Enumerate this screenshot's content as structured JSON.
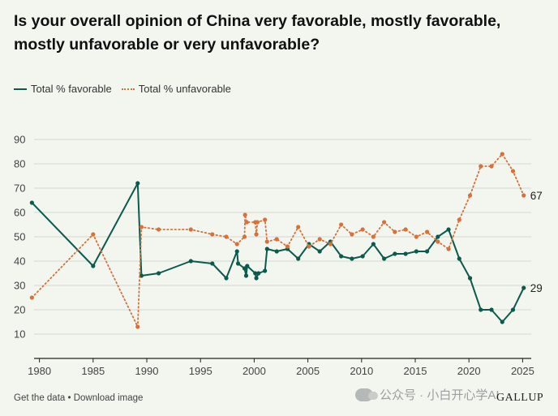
{
  "title": "Is your overall opinion of China very favorable, mostly favorable, mostly unfavorable or very unfavorable?",
  "footer": {
    "get_data": "Get the data",
    "separator": "•",
    "download": "Download image",
    "brand": "GALLUP",
    "watermark": "公众号 · 小白开心学AI"
  },
  "colors": {
    "favorable": "#0a5a4e",
    "unfavorable": "#d8703a",
    "grid": "#d3d8d0",
    "axis": "#222222"
  },
  "chart_data": {
    "type": "line",
    "xlim": [
      1979.5,
      2025.8
    ],
    "ylim": [
      0,
      90
    ],
    "yticks": [
      10,
      20,
      30,
      40,
      50,
      60,
      70,
      80,
      90
    ],
    "xticks": [
      1980,
      1985,
      1990,
      1995,
      2000,
      2005,
      2010,
      2015,
      2020,
      2025
    ],
    "grid": "horizontal",
    "legend": "top-left",
    "series": [
      {
        "name": "Total % favorable",
        "style": "solid",
        "end_label": "29",
        "points": [
          [
            1979.3,
            64
          ],
          [
            1985.0,
            38
          ],
          [
            1989.15,
            72
          ],
          [
            1989.5,
            34
          ],
          [
            1991.1,
            35
          ],
          [
            1994.1,
            40
          ],
          [
            1996.1,
            39
          ],
          [
            1997.4,
            33
          ],
          [
            1998.4,
            44
          ],
          [
            1998.5,
            39
          ],
          [
            1999.1,
            37
          ],
          [
            1999.25,
            34
          ],
          [
            1999.35,
            38
          ],
          [
            2000.1,
            35
          ],
          [
            2000.2,
            33
          ],
          [
            2000.4,
            35
          ],
          [
            2001.0,
            36
          ],
          [
            2001.2,
            45
          ],
          [
            2002.1,
            44
          ],
          [
            2003.1,
            45
          ],
          [
            2004.1,
            41
          ],
          [
            2005.1,
            47
          ],
          [
            2006.1,
            44
          ],
          [
            2007.1,
            48
          ],
          [
            2008.1,
            42
          ],
          [
            2009.1,
            41
          ],
          [
            2010.1,
            42
          ],
          [
            2011.1,
            47
          ],
          [
            2012.1,
            41
          ],
          [
            2013.1,
            43
          ],
          [
            2014.1,
            43
          ],
          [
            2015.1,
            44
          ],
          [
            2016.1,
            44
          ],
          [
            2017.1,
            50
          ],
          [
            2018.1,
            53
          ],
          [
            2019.1,
            41
          ],
          [
            2020.1,
            33
          ],
          [
            2021.1,
            20
          ],
          [
            2022.1,
            20
          ],
          [
            2023.1,
            15
          ],
          [
            2024.1,
            20
          ],
          [
            2025.1,
            29
          ]
        ]
      },
      {
        "name": "Total % unfavorable",
        "style": "dotted",
        "end_label": "67",
        "points": [
          [
            1979.3,
            25
          ],
          [
            1985.0,
            51
          ],
          [
            1989.15,
            13
          ],
          [
            1989.5,
            54
          ],
          [
            1991.1,
            53
          ],
          [
            1994.1,
            53
          ],
          [
            1996.1,
            51
          ],
          [
            1997.4,
            50
          ],
          [
            1998.4,
            47
          ],
          [
            1999.1,
            50
          ],
          [
            1999.15,
            59
          ],
          [
            1999.3,
            56
          ],
          [
            2000.1,
            56
          ],
          [
            2000.2,
            51
          ],
          [
            2000.3,
            56
          ],
          [
            2001.0,
            57
          ],
          [
            2001.2,
            48
          ],
          [
            2002.1,
            49
          ],
          [
            2003.1,
            46
          ],
          [
            2004.1,
            54
          ],
          [
            2005.1,
            46
          ],
          [
            2006.1,
            49
          ],
          [
            2007.1,
            47
          ],
          [
            2008.1,
            55
          ],
          [
            2009.1,
            51
          ],
          [
            2010.1,
            53
          ],
          [
            2011.1,
            50
          ],
          [
            2012.1,
            56
          ],
          [
            2013.1,
            52
          ],
          [
            2014.1,
            53
          ],
          [
            2015.1,
            50
          ],
          [
            2016.1,
            52
          ],
          [
            2017.1,
            48
          ],
          [
            2018.1,
            45
          ],
          [
            2019.1,
            57
          ],
          [
            2020.1,
            67
          ],
          [
            2021.1,
            79
          ],
          [
            2022.1,
            79
          ],
          [
            2023.1,
            84
          ],
          [
            2024.1,
            77
          ],
          [
            2025.1,
            67
          ]
        ]
      }
    ]
  }
}
